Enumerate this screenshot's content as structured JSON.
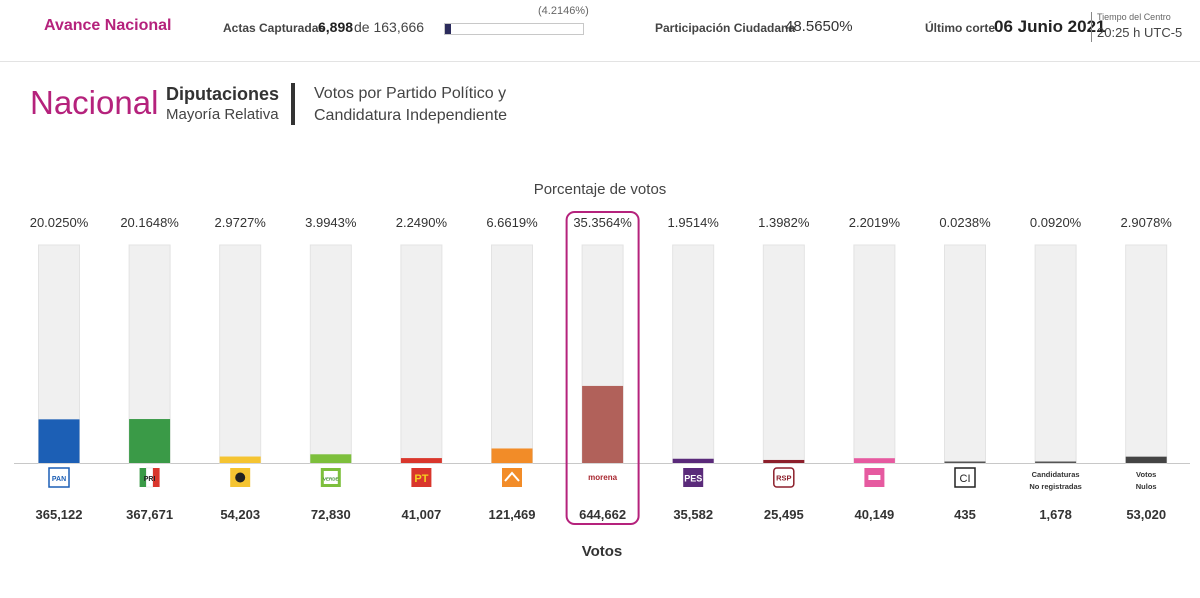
{
  "header": {
    "brand": "Avance Nacional",
    "actas_label": "Actas Capturadas",
    "actas_count": "6,898",
    "actas_total": "de 163,666",
    "progress_pct_text": "(4.2146%)",
    "progress_fraction": 0.042146,
    "participacion_label": "Participación Ciudadana",
    "participacion_value": "48.5650%",
    "corte_label": "Último corte",
    "corte_value": "06 Junio 2021",
    "tz_label": "Tiempo del Centro",
    "tz_value": "20:25 h UTC-5"
  },
  "heading": {
    "scope": "Nacional",
    "election": "Diputaciones",
    "subtype": "Mayoría Relativa",
    "desc_line1": "Votos por Partido Político y",
    "desc_line2": "Candidatura Independiente"
  },
  "chart_data": {
    "type": "bar",
    "title": "Porcentaje de votos",
    "xlabel": "Votos",
    "ylim": [
      0,
      100
    ],
    "highlight_index": 6,
    "categories": [
      "PAN",
      "PRI",
      "PRD",
      "VERDE",
      "PT",
      "MC",
      "morena",
      "PES",
      "RSP",
      "FXM",
      "CI",
      "Candidaturas No registradas",
      "Votos Nulos"
    ],
    "percent_labels": [
      "20.0250%",
      "20.1648%",
      "2.9727%",
      "3.9943%",
      "2.2490%",
      "6.6619%",
      "35.3564%",
      "1.9514%",
      "1.3982%",
      "2.2019%",
      "0.0238%",
      "0.0920%",
      "2.9078%"
    ],
    "percentages": [
      20.025,
      20.1648,
      2.9727,
      3.9943,
      2.249,
      6.6619,
      35.3564,
      1.9514,
      1.3982,
      2.2019,
      0.0238,
      0.092,
      2.9078
    ],
    "vote_labels": [
      "365,122",
      "367,671",
      "54,203",
      "72,830",
      "41,007",
      "121,469",
      "644,662",
      "35,582",
      "25,495",
      "40,149",
      "435",
      "1,678",
      "53,020"
    ],
    "votes": [
      365122,
      367671,
      54203,
      72830,
      41007,
      121469,
      644662,
      35582,
      25495,
      40149,
      435,
      1678,
      53020
    ],
    "colors": [
      "#1c5fb5",
      "#3a9a47",
      "#f5c431",
      "#7dbf3c",
      "#d9362c",
      "#f28c28",
      "#b1615a",
      "#5a2a7a",
      "#8c1f2b",
      "#e65aa0",
      "#555555",
      "#555555",
      "#444444"
    ],
    "logos": [
      {
        "label": "PAN",
        "name": "pan-logo-icon"
      },
      {
        "label": "PRI",
        "name": "pri-logo-icon"
      },
      {
        "label": "",
        "name": "prd-logo-icon"
      },
      {
        "label": "VERDE",
        "name": "verde-logo-icon"
      },
      {
        "label": "PT",
        "name": "pt-logo-icon"
      },
      {
        "label": "",
        "name": "mc-logo-icon"
      },
      {
        "label": "morena",
        "name": "morena-logo-icon"
      },
      {
        "label": "PES",
        "name": "pes-logo-icon"
      },
      {
        "label": "RSP",
        "name": "rsp-logo-icon"
      },
      {
        "label": "",
        "name": "fxm-logo-icon"
      },
      {
        "label": "CI",
        "name": "ci-logo-icon"
      },
      {
        "label": "Candidaturas\nNo registradas",
        "name": "no-registradas-label"
      },
      {
        "label": "Votos\nNulos",
        "name": "votos-nulos-label"
      }
    ]
  }
}
